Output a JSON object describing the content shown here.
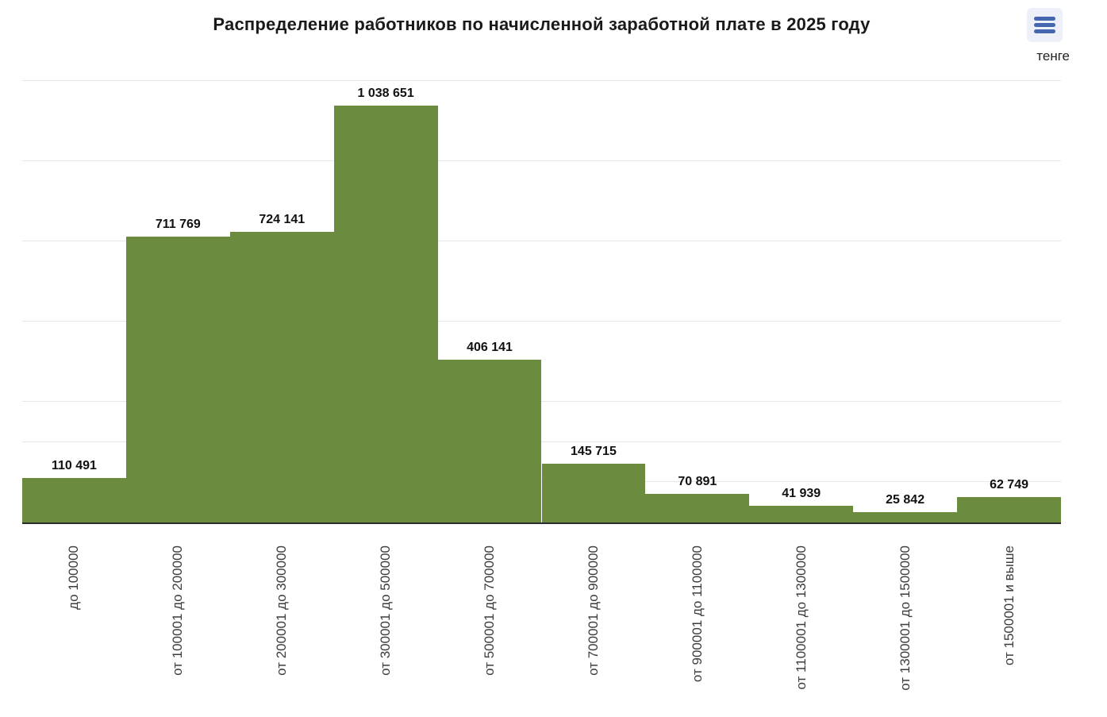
{
  "title": "Распределение работников по начисленной заработной плате в 2025 году",
  "unit_label": "тенге",
  "menu": {
    "icon": "hamburger-menu-icon"
  },
  "colors": {
    "bar": "#6b8c3e",
    "bar_separator": "rgba(255,255,255,0.45)",
    "gridline": "#e7e7e7",
    "axis_line": "#2d2d2d",
    "menu_button_bg": "#edf0f8",
    "menu_button_lines": "#4565ae",
    "title_text": "#1a1a1a",
    "value_label_text": "#111111",
    "x_label_text": "#3c3c3c"
  },
  "chart_data": {
    "type": "bar",
    "title": "Распределение работников по начисленной заработной плате в 2025 году",
    "unit": "тенге",
    "categories": [
      "до 100000",
      "от 100001 до 200000",
      "от 200001 до 300000",
      "от 300001 до 500000",
      "от 500001 до 700000",
      "от 700001 до 900000",
      "от 900001 до 1100000",
      "от 1100001 до 1300000",
      "от 1300001 до 1500000",
      "от 1500001 и выше"
    ],
    "values": [
      110491,
      711769,
      724141,
      1038651,
      406141,
      145715,
      70891,
      41939,
      25842,
      62749
    ],
    "value_labels": [
      "110 491",
      "711 769",
      "724 141",
      "1 038 651",
      "406 141",
      "145 715",
      "70 891",
      "41 939",
      "25 842",
      "62 749"
    ],
    "xlabel": "",
    "ylabel": "тенге",
    "ylim": [
      0,
      1114000
    ],
    "gridline_values": [
      100000,
      200000,
      300000,
      500000,
      700000,
      900000,
      1100000
    ],
    "grid": "horizontal",
    "legend": "none",
    "y_axis_tick_labels": "hidden",
    "x_tick_rotation": -90
  }
}
